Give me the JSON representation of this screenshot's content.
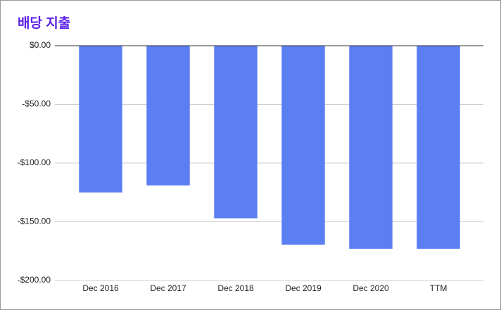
{
  "chart_data": {
    "type": "bar",
    "title": "배당 지출",
    "categories": [
      "Dec 2016",
      "Dec 2017",
      "Dec 2018",
      "Dec 2019",
      "Dec 2020",
      "TTM"
    ],
    "values": [
      -125,
      -119,
      -147,
      -169.5,
      -173,
      -173
    ],
    "color": "#5b7ef3",
    "ylim": [
      -200,
      0
    ],
    "yticks": [
      {
        "value": 0,
        "label": "$0.00"
      },
      {
        "value": -50,
        "label": "-$50.00"
      },
      {
        "value": -100,
        "label": "-$100.00"
      },
      {
        "value": -150,
        "label": "-$150.00"
      },
      {
        "value": -200,
        "label": "-$200.00"
      }
    ],
    "grid": true
  }
}
